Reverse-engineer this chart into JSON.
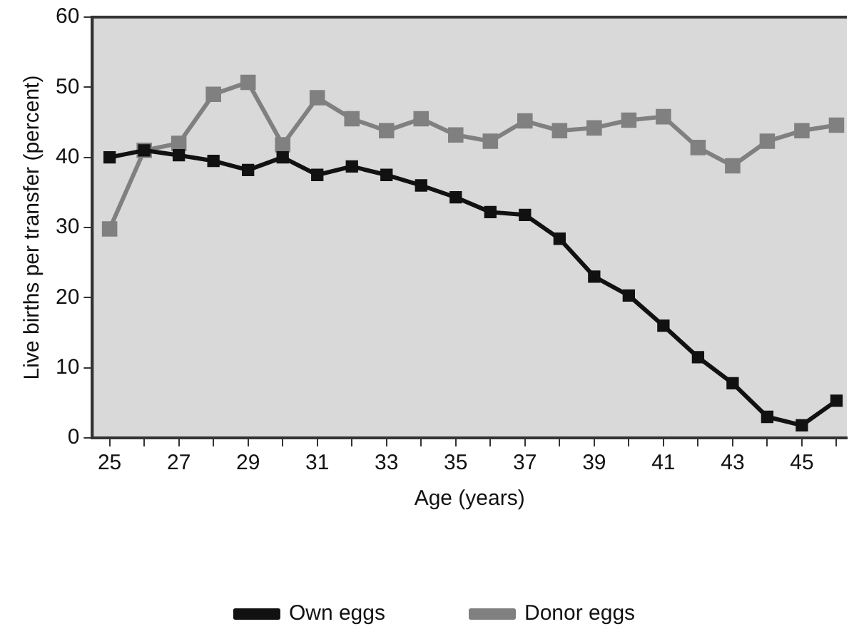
{
  "chart_data": {
    "type": "line",
    "xlabel": "Age (years)",
    "ylabel": "Live births per transfer (percent)",
    "x": [
      25,
      26,
      27,
      28,
      29,
      30,
      31,
      32,
      33,
      34,
      35,
      36,
      37,
      38,
      39,
      40,
      41,
      42,
      43,
      44,
      45,
      46
    ],
    "xlim": [
      24.5,
      46.3
    ],
    "xticks": [
      25,
      {
        "value": 26,
        "label": null
      },
      27,
      {
        "value": 28,
        "label": null
      },
      29,
      {
        "value": 30,
        "label": null
      },
      31,
      {
        "value": 32,
        "label": null
      },
      33,
      {
        "value": 34,
        "label": null
      },
      35,
      {
        "value": 36,
        "label": null
      },
      37,
      {
        "value": 38,
        "label": null
      },
      39,
      {
        "value": 40,
        "label": null
      },
      41,
      {
        "value": 42,
        "label": null
      },
      43,
      {
        "value": 44,
        "label": null
      },
      45,
      {
        "value": 46,
        "label": null
      }
    ],
    "ylim": [
      0,
      60
    ],
    "yticks": [
      0,
      10,
      20,
      30,
      40,
      50,
      60
    ],
    "series": [
      {
        "name": "Own eggs",
        "color": "#111111",
        "values": [
          40,
          41,
          40.3,
          39.5,
          38.2,
          40,
          37.5,
          38.7,
          37.5,
          36,
          34.3,
          32.2,
          31.8,
          28.4,
          23,
          20.3,
          16,
          11.5,
          7.8,
          3,
          1.8,
          5.3
        ]
      },
      {
        "name": "Donor eggs",
        "color": "#808080",
        "values": [
          29.8,
          41,
          42,
          49,
          50.7,
          41.8,
          48.5,
          45.5,
          43.8,
          45.5,
          43.2,
          42.3,
          45.2,
          43.8,
          44.2,
          45.3,
          45.8,
          41.4,
          38.8,
          42.3,
          43.8,
          44.6
        ]
      }
    ],
    "marker": "square",
    "line_style": "solid",
    "grid": false,
    "legend": "bottom"
  }
}
